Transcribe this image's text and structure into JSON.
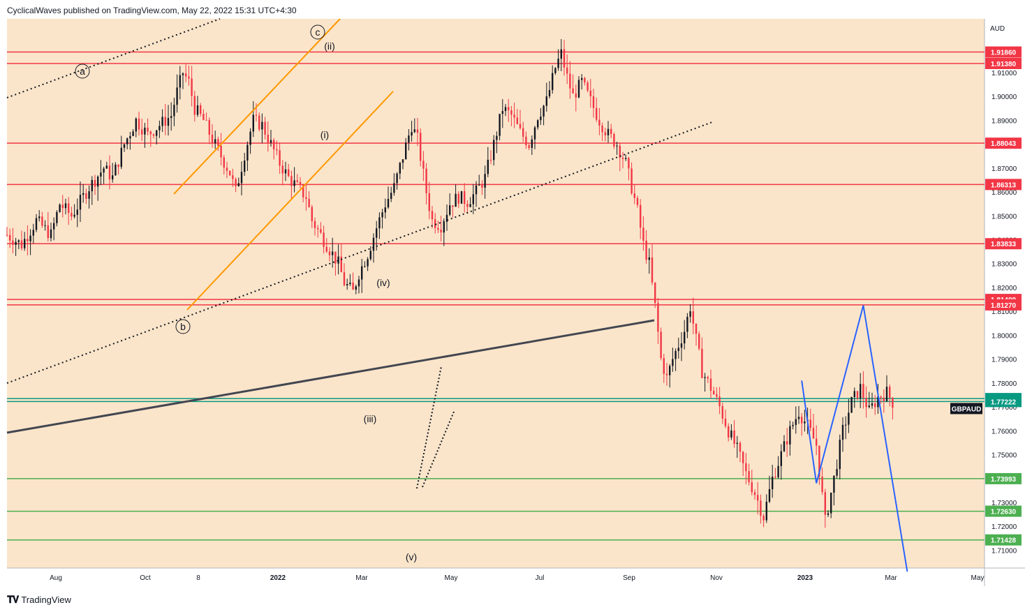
{
  "header": {
    "published": "CyclicalWaves published on TradingView.com, May 22, 2022 15:31 UTC+4:30"
  },
  "footer": {
    "brand": "TradingView"
  },
  "colors": {
    "background": "#fae5ca",
    "red_level": "#f23645",
    "green_level": "#4caf50",
    "teal_level": "#089981",
    "channel": "#ff9800",
    "projection": "#2962ff",
    "trendline": "#434651"
  },
  "chart_data": {
    "type": "candlestick",
    "symbol": "GBPAUD",
    "currency": "AUD",
    "ylim": [
      1.7025,
      1.9325
    ],
    "y_ticks": [
      "1.71000",
      "1.72000",
      "1.73000",
      "1.74000",
      "1.75000",
      "1.76000",
      "1.77000",
      "1.78000",
      "1.79000",
      "1.80000",
      "1.81000",
      "1.82000",
      "1.83000",
      "1.84000",
      "1.85000",
      "1.86000",
      "1.87000",
      "1.88000",
      "1.89000",
      "1.90000",
      "1.91000"
    ],
    "x_ticks": [
      "Aug",
      "Oct",
      "8",
      "2022",
      "Mar",
      "May",
      "Jul",
      "Sep",
      "Nov",
      "2023",
      "Mar",
      "May"
    ],
    "red_levels": [
      "1.91860",
      "1.91380",
      "1.88043",
      "1.86313",
      "1.83833",
      "1.81499",
      "1.81270"
    ],
    "teal_levels": [
      "1.77348",
      "1.77222"
    ],
    "green_levels": [
      "1.73993",
      "1.72630",
      "1.71428"
    ],
    "last_price": "1.77222",
    "wave_labels": [
      "a",
      "b",
      "c",
      "(i)",
      "(ii)",
      "(iii)",
      "(iv)",
      "(v)"
    ],
    "price_path": [
      [
        0,
        1.842
      ],
      [
        5,
        1.838
      ],
      [
        10,
        1.848
      ],
      [
        15,
        1.842
      ],
      [
        18,
        1.855
      ],
      [
        22,
        1.85
      ],
      [
        28,
        1.862
      ],
      [
        33,
        1.87
      ],
      [
        36,
        1.866
      ],
      [
        40,
        1.88
      ],
      [
        44,
        1.89
      ],
      [
        48,
        1.884
      ],
      [
        52,
        1.888
      ],
      [
        56,
        1.892
      ],
      [
        58,
        1.902
      ],
      [
        60,
        1.91
      ],
      [
        62,
        1.906
      ],
      [
        64,
        1.895
      ],
      [
        67,
        1.89
      ],
      [
        70,
        1.882
      ],
      [
        73,
        1.875
      ],
      [
        76,
        1.868
      ],
      [
        78,
        1.86
      ],
      [
        81,
        1.876
      ],
      [
        84,
        1.89
      ],
      [
        87,
        1.888
      ],
      [
        90,
        1.88
      ],
      [
        93,
        1.872
      ],
      [
        96,
        1.866
      ],
      [
        99,
        1.862
      ],
      [
        102,
        1.858
      ],
      [
        104,
        1.848
      ],
      [
        107,
        1.842
      ],
      [
        110,
        1.836
      ],
      [
        113,
        1.83
      ],
      [
        115,
        1.822
      ],
      [
        118,
        1.818
      ],
      [
        120,
        1.826
      ],
      [
        123,
        1.834
      ],
      [
        126,
        1.845
      ],
      [
        129,
        1.855
      ],
      [
        132,
        1.862
      ],
      [
        135,
        1.875
      ],
      [
        138,
        1.888
      ],
      [
        140,
        1.882
      ],
      [
        143,
        1.86
      ],
      [
        145,
        1.848
      ],
      [
        148,
        1.846
      ],
      [
        151,
        1.855
      ],
      [
        154,
        1.858
      ],
      [
        157,
        1.856
      ],
      [
        160,
        1.86
      ],
      [
        163,
        1.866
      ],
      [
        166,
        1.88
      ],
      [
        169,
        1.895
      ],
      [
        172,
        1.892
      ],
      [
        175,
        1.885
      ],
      [
        178,
        1.88
      ],
      [
        181,
        1.892
      ],
      [
        184,
        1.898
      ],
      [
        187,
        1.912
      ],
      [
        189,
        1.918
      ],
      [
        191,
        1.908
      ],
      [
        193,
        1.9
      ],
      [
        196,
        1.906
      ],
      [
        199,
        1.898
      ],
      [
        202,
        1.89
      ],
      [
        205,
        1.884
      ],
      [
        208,
        1.88
      ],
      [
        211,
        1.872
      ],
      [
        213,
        1.862
      ],
      [
        215,
        1.852
      ],
      [
        217,
        1.838
      ],
      [
        219,
        1.83
      ],
      [
        221,
        1.812
      ],
      [
        223,
        1.79
      ],
      [
        225,
        1.782
      ],
      [
        227,
        1.79
      ],
      [
        229,
        1.796
      ],
      [
        231,
        1.802
      ],
      [
        233,
        1.812
      ],
      [
        235,
        1.798
      ],
      [
        237,
        1.785
      ],
      [
        240,
        1.778
      ],
      [
        243,
        1.77
      ],
      [
        246,
        1.76
      ],
      [
        249,
        1.752
      ],
      [
        252,
        1.742
      ],
      [
        255,
        1.734
      ],
      [
        258,
        1.724
      ],
      [
        261,
        1.74
      ],
      [
        264,
        1.75
      ],
      [
        267,
        1.76
      ],
      [
        270,
        1.768
      ],
      [
        273,
        1.762
      ],
      [
        276,
        1.754
      ],
      [
        279,
        1.722
      ],
      [
        282,
        1.74
      ],
      [
        285,
        1.76
      ],
      [
        288,
        1.772
      ],
      [
        291,
        1.778
      ],
      [
        294,
        1.768
      ],
      [
        297,
        1.774
      ],
      [
        300,
        1.776
      ],
      [
        302,
        1.772
      ]
    ],
    "projection_path": [
      [
        271,
        1.781
      ],
      [
        276,
        1.738
      ],
      [
        292,
        1.8125
      ],
      [
        307,
        1.701
      ]
    ]
  }
}
